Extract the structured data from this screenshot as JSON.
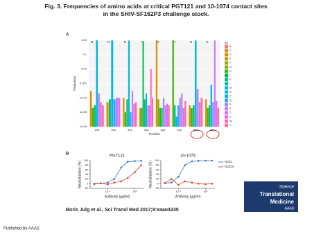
{
  "title": "Fig. 3. Frequencies of amino acids at critical PGT121 and 10-1074 contact sites in the SHIV-SF162P3 challenge stock.",
  "panels": [
    "A",
    "B"
  ],
  "chart_data": [
    {
      "type": "bar",
      "log_y": true,
      "ylabel": "Frequency",
      "xlabel": "Position",
      "categories": [
        "295",
        "300",
        "301",
        "302",
        "325",
        "330",
        "332",
        "334"
      ],
      "annotations": [
        "N",
        "N",
        "N",
        "I",
        "D",
        "H",
        "N",
        "S"
      ],
      "ylim": [
        1e-06,
        1
      ],
      "yticks": [
        {
          "value": 1,
          "label": "1.00"
        },
        0.1,
        0.01,
        0.001,
        {
          "value": 0.0001,
          "label": "1e-04"
        },
        {
          "value": 1e-05,
          "label": "1e-05"
        },
        {
          "value": 1e-06,
          "label": "1e-06"
        }
      ],
      "legend": "right",
      "legend_title": "aa",
      "series": [
        {
          "name": "A",
          "color": "#F8766D",
          "values": [
            null,
            null,
            null,
            null,
            null,
            null,
            null,
            null
          ]
        },
        {
          "name": "C",
          "color": "#EA8331",
          "values": [
            null,
            null,
            null,
            null,
            null,
            null,
            null,
            null
          ]
        },
        {
          "name": "D",
          "color": "#D89000",
          "values": [
            0.0003,
            5e-05,
            0.0001,
            2e-05,
            0.98,
            null,
            3e-05,
            8e-05
          ]
        },
        {
          "name": "E",
          "color": "#C09B00",
          "values": [
            null,
            null,
            null,
            null,
            null,
            null,
            null,
            null
          ]
        },
        {
          "name": "F",
          "color": "#A3A500",
          "values": [
            null,
            null,
            null,
            null,
            null,
            null,
            null,
            null
          ]
        },
        {
          "name": "G",
          "color": "#7CAE00",
          "values": [
            null,
            null,
            null,
            null,
            8e-05,
            null,
            null,
            null
          ]
        },
        {
          "name": "H",
          "color": "#39B600",
          "values": [
            2e-05,
            null,
            1e-05,
            2e-05,
            2e-05,
            0.97,
            2e-05,
            2e-05
          ]
        },
        {
          "name": "I",
          "color": "#00BB4E",
          "values": [
            null,
            null,
            null,
            0.9,
            null,
            null,
            null,
            null
          ]
        },
        {
          "name": "K",
          "color": "#00BF7D",
          "values": [
            3e-05,
            8e-05,
            8e-05,
            8e-05,
            2e-05,
            3e-05,
            3e-05,
            3e-05
          ]
        },
        {
          "name": "L",
          "color": "#00C1A3",
          "values": [
            null,
            null,
            null,
            null,
            null,
            null,
            null,
            null
          ]
        },
        {
          "name": "M",
          "color": "#00BFC4",
          "values": [
            null,
            null,
            null,
            0.0002,
            null,
            null,
            null,
            null
          ]
        },
        {
          "name": "N",
          "color": "#00BAE0",
          "values": [
            0.97,
            0.96,
            0.95,
            null,
            null,
            null,
            0.95,
            0.0008
          ]
        },
        {
          "name": "P",
          "color": "#00B0F6",
          "values": [
            null,
            null,
            null,
            null,
            null,
            5e-06,
            null,
            null
          ]
        },
        {
          "name": "Q",
          "color": "#35A2FF",
          "values": [
            null,
            8e-05,
            1e-05,
            null,
            null,
            3e-05,
            null,
            null
          ]
        },
        {
          "name": "R",
          "color": "#9590FF",
          "values": [
            null,
            null,
            null,
            null,
            0.0001,
            0.0001,
            null,
            5e-05
          ]
        },
        {
          "name": "S",
          "color": "#C77CFF",
          "values": [
            0.0002,
            0.0001,
            0.0003,
            3e-05,
            3e-05,
            0.0002,
            0.0004,
            0.96
          ]
        },
        {
          "name": "T",
          "color": "#E76BF3",
          "values": [
            5e-05,
            0.0001,
            4e-05,
            3e-05,
            4e-05,
            2e-05,
            5e-05,
            6e-05
          ]
        },
        {
          "name": "V",
          "color": "#FA62DB",
          "values": [
            null,
            null,
            null,
            0.01,
            null,
            null,
            null,
            null
          ]
        },
        {
          "name": "W",
          "color": "#FF62BC",
          "values": [
            null,
            null,
            null,
            null,
            null,
            null,
            null,
            null
          ]
        },
        {
          "name": "Y",
          "color": "#FF6C91",
          "values": [
            3e-05,
            null,
            5e-05,
            0.0001,
            3e-05,
            6e-05,
            0.0001,
            2e-05
          ]
        }
      ]
    },
    {
      "type": "line",
      "title": "PGT121",
      "log_x": true,
      "ylabel": "Neutralization (%)",
      "xlabel": "Antibody (µg/ml)",
      "x": [
        0.01,
        0.03,
        0.1,
        0.3,
        1,
        3,
        10,
        30
      ],
      "xlim": [
        0.005,
        50
      ],
      "xticks": [
        {
          "value": 0.1,
          "label": "10⁻¹"
        },
        {
          "value": 10,
          "label": "10¹"
        }
      ],
      "ylim": [
        -20,
        100
      ],
      "yticks": [
        -20,
        0,
        20,
        40,
        60,
        80,
        100
      ],
      "legend": false,
      "series": [
        {
          "name": "N332",
          "color": "#3a6fc4",
          "values": [
            -2,
            1,
            5,
            20,
            70,
            95,
            98,
            99
          ]
        },
        {
          "name": "N332A",
          "color": "#d6452e",
          "values": [
            0,
            2,
            -3,
            5,
            10,
            25,
            50,
            80
          ]
        }
      ]
    },
    {
      "type": "line",
      "title": "10-1074",
      "log_x": true,
      "ylabel": "Neutralization (%)",
      "xlabel": "Antibody (µg/ml)",
      "x": [
        0.01,
        0.03,
        0.1,
        0.3,
        1,
        3,
        10,
        30
      ],
      "xlim": [
        0.005,
        50
      ],
      "xticks": [
        {
          "value": 0.1,
          "label": "10⁻¹"
        },
        {
          "value": 10,
          "label": "10¹"
        }
      ],
      "ylim": [
        -20,
        100
      ],
      "yticks": [
        -20,
        0,
        20,
        40,
        60,
        80,
        100
      ],
      "legend": "right",
      "series": [
        {
          "name": "N332",
          "color": "#3a6fc4",
          "values": [
            2,
            5,
            30,
            80,
            97,
            99,
            100,
            100
          ]
        },
        {
          "name": "N332A",
          "color": "#d6452e",
          "values": [
            3,
            20,
            -5,
            10,
            5,
            0,
            -2,
            0
          ]
        }
      ]
    }
  ],
  "citation": "Boris Julg et al., Sci Transl Med 2017;9:eaao4235",
  "logo": [
    "Science",
    "Translational",
    "Medicine",
    "AAAS"
  ],
  "footer": "Published by AAAS"
}
